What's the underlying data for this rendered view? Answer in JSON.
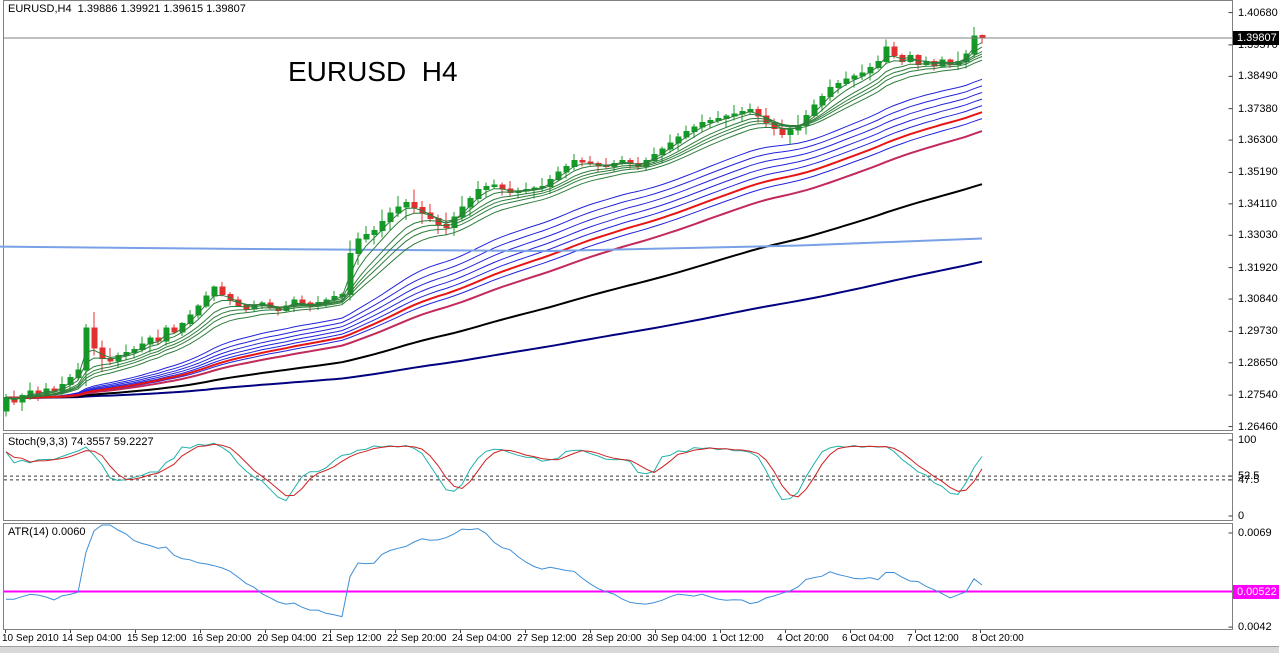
{
  "window": {
    "title_line": "EURUSD,H4  1.39886 1.39921 1.39615 1.39807",
    "watermark": "EURUSD  H4"
  },
  "colors": {
    "bull": "#149a26",
    "bear": "#e03030",
    "ribbon_short": "#2e7d3a",
    "ribbon_long": "#2222dd",
    "ema_mid_red": "#e81414",
    "ema_crimson": "#c22a5a",
    "ema_black": "#000000",
    "ema_navy": "#000080",
    "flat_line_blue": "#7aa0e8",
    "current_price_line": "#808080",
    "panel_frame": "#808080",
    "stoch_main": "#20b2aa",
    "stoch_signal": "#d02020",
    "atr_line": "#3e8fd8",
    "atr_level": "#ff00ff",
    "badge_price_bg": "#000000",
    "badge_atr_bg": "#ff00ff",
    "level_dash": "#333333"
  },
  "chart_data": {
    "type": "candlestick",
    "symbol": "EURUSD",
    "timeframe": "H4",
    "current_bar": {
      "open": 1.39886,
      "high": 1.39921,
      "low": 1.39615,
      "close": 1.39807
    },
    "candles": {
      "pip": 0.0001,
      "first_open": 1.27,
      "last_open": 1.39886,
      "closes": [
        1.2745,
        1.273,
        1.2752,
        1.2768,
        1.276,
        1.2775,
        1.2768,
        1.279,
        1.2815,
        1.284,
        1.2985,
        1.2915,
        1.288,
        1.2872,
        1.289,
        1.29,
        1.291,
        1.293,
        1.295,
        1.294,
        1.2985,
        1.297,
        1.3,
        1.303,
        1.306,
        1.3095,
        1.3125,
        1.31,
        1.308,
        1.3062,
        1.305,
        1.3062,
        1.307,
        1.3055,
        1.3045,
        1.306,
        1.308,
        1.307,
        1.306,
        1.3072,
        1.308,
        1.3092,
        1.31,
        1.324,
        1.329,
        1.3305,
        1.332,
        1.335,
        1.338,
        1.34,
        1.3415,
        1.3398,
        1.338,
        1.336,
        1.334,
        1.333,
        1.3365,
        1.34,
        1.343,
        1.346,
        1.347,
        1.3475,
        1.3462,
        1.345,
        1.3455,
        1.346,
        1.3465,
        1.347,
        1.3495,
        1.352,
        1.354,
        1.356,
        1.3555,
        1.355,
        1.3545,
        1.354,
        1.355,
        1.356,
        1.355,
        1.354,
        1.356,
        1.358,
        1.36,
        1.362,
        1.364,
        1.366,
        1.3675,
        1.369,
        1.3698,
        1.3705,
        1.3712,
        1.372,
        1.3728,
        1.3735,
        1.3712,
        1.369,
        1.367,
        1.365,
        1.3665,
        1.368,
        1.3715,
        1.375,
        1.378,
        1.381,
        1.3825,
        1.384,
        1.385,
        1.386,
        1.388,
        1.39,
        1.395,
        1.392,
        1.39,
        1.392,
        1.389,
        1.39,
        1.3885,
        1.3905,
        1.389,
        1.39,
        1.3925,
        1.3988,
        1.39807
      ],
      "wick_hi_pips": [
        12,
        25,
        8,
        30,
        15,
        20,
        10,
        28,
        12,
        25,
        14,
        54,
        27,
        36,
        10,
        28,
        12,
        25,
        8,
        30,
        9,
        12,
        6,
        17,
        7,
        15,
        5,
        18,
        9,
        12,
        6,
        17,
        7,
        15,
        5,
        18,
        12,
        16,
        8,
        22,
        10,
        20,
        6,
        45,
        22,
        30,
        15,
        42,
        18,
        38,
        12,
        45,
        22,
        30,
        15,
        42,
        18,
        38,
        8,
        30,
        15,
        20,
        10,
        28,
        12,
        25,
        8,
        30,
        15,
        20,
        10,
        22,
        10,
        20,
        6,
        24,
        12,
        16,
        8,
        22,
        10,
        25,
        8,
        30,
        15,
        20,
        10,
        28,
        12,
        25,
        8,
        30,
        15,
        20,
        10,
        28,
        14,
        30,
        10,
        36,
        18,
        20,
        10,
        28,
        12,
        25,
        8,
        30,
        15,
        20,
        25,
        17,
        7,
        15,
        5,
        18,
        9,
        12,
        6,
        34,
        14,
        30,
        4
      ],
      "wick_lo_pips": [
        20,
        10,
        30,
        14,
        26,
        8,
        22,
        16,
        20,
        10,
        54,
        25,
        47,
        14,
        22,
        16,
        20,
        10,
        30,
        14,
        16,
        5,
        13,
        10,
        12,
        6,
        18,
        8,
        16,
        5,
        13,
        10,
        12,
        6,
        18,
        8,
        21,
        6,
        18,
        13,
        16,
        8,
        24,
        21,
        39,
        12,
        33,
        24,
        30,
        15,
        45,
        21,
        39,
        12,
        33,
        24,
        30,
        15,
        30,
        14,
        26,
        8,
        22,
        16,
        20,
        10,
        30,
        14,
        26,
        8,
        22,
        13,
        16,
        8,
        24,
        11,
        21,
        6,
        18,
        13,
        16,
        10,
        30,
        14,
        26,
        8,
        22,
        16,
        20,
        10,
        30,
        14,
        26,
        8,
        22,
        16,
        24,
        12,
        36,
        17,
        31,
        8,
        22,
        16,
        20,
        10,
        30,
        14,
        26,
        8,
        10,
        10,
        12,
        6,
        18,
        8,
        16,
        5,
        13,
        19,
        24,
        12,
        19
      ]
    },
    "overlays": [
      {
        "name": "ema-navy",
        "periods": [
          250
        ],
        "color_key": "ema_navy",
        "width": 2,
        "above_candles": false
      },
      {
        "name": "ema-black",
        "periods": [
          120
        ],
        "color_key": "ema_black",
        "width": 2,
        "above_candles": false
      },
      {
        "name": "ema-crimson",
        "periods": [
          70
        ],
        "color_key": "ema_crimson",
        "width": 2,
        "above_candles": false
      },
      {
        "name": "ema-ribbon-long",
        "periods": [
          30,
          35,
          40,
          45,
          50,
          60
        ],
        "color_key": "ribbon_long",
        "width": 1,
        "above_candles": false
      },
      {
        "name": "ema-mid-red",
        "periods": [
          55
        ],
        "color_key": "ema_mid_red",
        "width": 2,
        "above_candles": false
      },
      {
        "name": "ema-ribbon-short",
        "periods": [
          3,
          5,
          8,
          10,
          12,
          15
        ],
        "color_key": "ribbon_short",
        "width": 1,
        "above_candles": true
      }
    ],
    "flat_line": {
      "name": "long-term-ma",
      "color_key": "flat_line_blue",
      "width": 2,
      "points": [
        [
          0,
          1.3264
        ],
        [
          250,
          1.3256
        ],
        [
          550,
          1.3249
        ],
        [
          800,
          1.3268
        ],
        [
          982,
          1.3292
        ]
      ]
    },
    "price_axis": {
      "ticks": [
        1.4068,
        1.3957,
        1.3849,
        1.3738,
        1.363,
        1.3519,
        1.3411,
        1.3303,
        1.3192,
        1.3084,
        1.2973,
        1.2865,
        1.2754,
        1.2646
      ],
      "current_price": 1.39807,
      "current_price_label": "1.39807"
    },
    "indicators": {
      "stochastic": {
        "label": "Stoch(9,3,3) 74.3557 59.2227",
        "k_period": 9,
        "slowing": 3,
        "d_period": 3,
        "main_value": 74.3557,
        "signal_value": 59.2227,
        "range": [
          0,
          100
        ],
        "axis_labels": [
          "100",
          "52.5",
          "47.5",
          "0"
        ],
        "levels": [
          52.5,
          47.5
        ]
      },
      "atr": {
        "label": "ATR(14) 0.0060",
        "period": 14,
        "value": 0.006,
        "seed": 0.005,
        "axis_top": 0.0069,
        "axis_bottom": 0.0042,
        "axis_top_label": "0.0069",
        "axis_bottom_label": "0.0042",
        "level": 0.00522,
        "level_label": "0.00522"
      }
    },
    "time_axis": {
      "labels": [
        "10 Sep 2010",
        "14 Sep 04:00",
        "15 Sep 12:00",
        "16 Sep 20:00",
        "20 Sep 04:00",
        "21 Sep 12:00",
        "22 Sep 20:00",
        "24 Sep 04:00",
        "27 Sep 12:00",
        "28 Sep 20:00",
        "30 Sep 04:00",
        "1 Oct 12:00",
        "4 Oct 20:00",
        "6 Oct 04:00",
        "7 Oct 12:00",
        "8 Oct 20:00"
      ]
    }
  }
}
